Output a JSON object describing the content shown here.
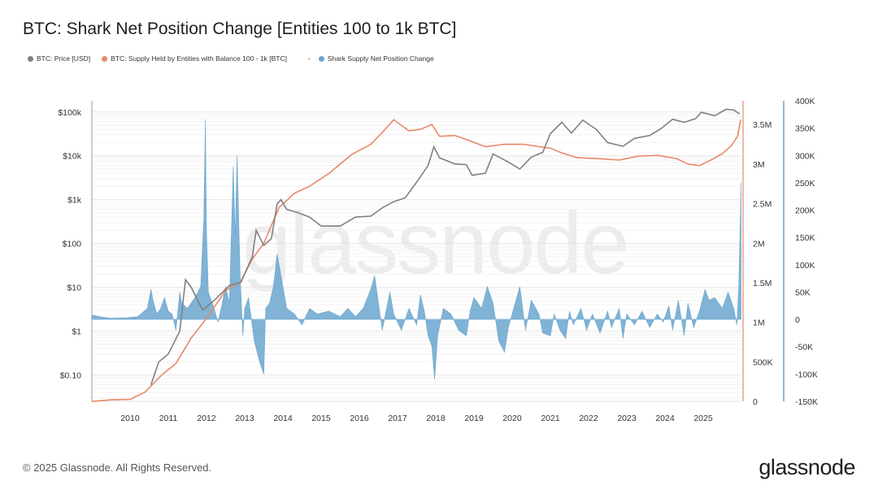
{
  "title": "BTC: Shark Net Position Change [Entities 100 to 1k BTC]",
  "legend": {
    "price": {
      "label": "BTC: Price [USD]",
      "color": "#808080"
    },
    "supply": {
      "label": "BTC: Supply Held by Entities with Balance 100 - 1k [BTC]",
      "color": "#e8896a"
    },
    "dash": "-",
    "netchange": {
      "label": "Shark Supply Net Position Change",
      "color": "#6aa6cf"
    }
  },
  "footer": "© 2025 Glassnode. All Rights Reserved.",
  "brand": "glassnode",
  "watermark": "glassnode",
  "chart_data": {
    "type": "line",
    "x_ticks": [
      "2010",
      "2011",
      "2012",
      "2013",
      "2014",
      "2015",
      "2016",
      "2017",
      "2018",
      "2019",
      "2020",
      "2021",
      "2022",
      "2023",
      "2024",
      "2025"
    ],
    "x_range": [
      2009.0,
      2026.0
    ],
    "axes": {
      "price": {
        "scale": "log",
        "ticks": [
          "$0.10",
          "$1",
          "$10",
          "$100",
          "$1k",
          "$10k",
          "$100k"
        ],
        "range": [
          0.025,
          180000
        ]
      },
      "supply": {
        "ticks": [
          "0",
          "500K",
          "1M",
          "1.5M",
          "2M",
          "2.5M",
          "3M",
          "3.5M"
        ],
        "range": [
          0,
          3800000
        ]
      },
      "netchange": {
        "ticks": [
          "-150K",
          "-100K",
          "-50K",
          "0",
          "50K",
          "100K",
          "150K",
          "200K",
          "250K",
          "300K",
          "350K",
          "400K"
        ],
        "range": [
          -150000,
          400000
        ]
      }
    },
    "series": [
      {
        "name": "BTC: Price [USD]",
        "axis": "price",
        "color": "#808080",
        "points": [
          [
            2010.55,
            0.06
          ],
          [
            2010.75,
            0.2
          ],
          [
            2011.0,
            0.3
          ],
          [
            2011.3,
            1.0
          ],
          [
            2011.45,
            15
          ],
          [
            2011.6,
            10
          ],
          [
            2011.9,
            3
          ],
          [
            2012.2,
            5
          ],
          [
            2012.6,
            11
          ],
          [
            2012.9,
            13
          ],
          [
            2013.2,
            50
          ],
          [
            2013.3,
            200
          ],
          [
            2013.5,
            90
          ],
          [
            2013.7,
            130
          ],
          [
            2013.85,
            800
          ],
          [
            2013.95,
            1000
          ],
          [
            2014.1,
            600
          ],
          [
            2014.4,
            500
          ],
          [
            2014.7,
            400
          ],
          [
            2015.0,
            250
          ],
          [
            2015.5,
            250
          ],
          [
            2015.9,
            400
          ],
          [
            2016.3,
            420
          ],
          [
            2016.6,
            650
          ],
          [
            2016.9,
            900
          ],
          [
            2017.2,
            1100
          ],
          [
            2017.5,
            2500
          ],
          [
            2017.8,
            6000
          ],
          [
            2017.95,
            16000
          ],
          [
            2018.1,
            9000
          ],
          [
            2018.5,
            6500
          ],
          [
            2018.8,
            6300
          ],
          [
            2018.95,
            3600
          ],
          [
            2019.3,
            4000
          ],
          [
            2019.5,
            11000
          ],
          [
            2019.9,
            7200
          ],
          [
            2020.2,
            5000
          ],
          [
            2020.5,
            9300
          ],
          [
            2020.8,
            12000
          ],
          [
            2021.0,
            32000
          ],
          [
            2021.3,
            58000
          ],
          [
            2021.55,
            33000
          ],
          [
            2021.85,
            65000
          ],
          [
            2022.2,
            40000
          ],
          [
            2022.5,
            20000
          ],
          [
            2022.9,
            16500
          ],
          [
            2023.2,
            25000
          ],
          [
            2023.6,
            29000
          ],
          [
            2023.9,
            42000
          ],
          [
            2024.2,
            68000
          ],
          [
            2024.5,
            58000
          ],
          [
            2024.8,
            70000
          ],
          [
            2024.95,
            98000
          ],
          [
            2025.3,
            82000
          ],
          [
            2025.6,
            115000
          ],
          [
            2025.8,
            110000
          ],
          [
            2025.95,
            90000
          ]
        ]
      },
      {
        "name": "BTC: Supply Held by Entities with Balance 100 - 1k [BTC]",
        "axis": "supply",
        "color": "#e8896a",
        "points": [
          [
            2009.0,
            0
          ],
          [
            2009.5,
            20000
          ],
          [
            2010.0,
            25000
          ],
          [
            2010.4,
            120000
          ],
          [
            2010.8,
            320000
          ],
          [
            2011.2,
            480000
          ],
          [
            2011.6,
            800000
          ],
          [
            2012.0,
            1050000
          ],
          [
            2012.5,
            1400000
          ],
          [
            2012.9,
            1520000
          ],
          [
            2013.2,
            1800000
          ],
          [
            2013.5,
            2000000
          ],
          [
            2013.9,
            2450000
          ],
          [
            2014.3,
            2630000
          ],
          [
            2014.7,
            2720000
          ],
          [
            2015.2,
            2880000
          ],
          [
            2015.8,
            3120000
          ],
          [
            2016.3,
            3250000
          ],
          [
            2016.6,
            3400000
          ],
          [
            2016.9,
            3560000
          ],
          [
            2017.3,
            3420000
          ],
          [
            2017.6,
            3440000
          ],
          [
            2017.9,
            3500000
          ],
          [
            2018.1,
            3350000
          ],
          [
            2018.5,
            3360000
          ],
          [
            2018.8,
            3310000
          ],
          [
            2019.3,
            3220000
          ],
          [
            2019.8,
            3250000
          ],
          [
            2020.3,
            3250000
          ],
          [
            2020.7,
            3220000
          ],
          [
            2021.0,
            3200000
          ],
          [
            2021.3,
            3140000
          ],
          [
            2021.7,
            3080000
          ],
          [
            2022.2,
            3070000
          ],
          [
            2022.8,
            3050000
          ],
          [
            2023.3,
            3100000
          ],
          [
            2023.8,
            3110000
          ],
          [
            2024.3,
            3070000
          ],
          [
            2024.6,
            3000000
          ],
          [
            2024.9,
            2980000
          ],
          [
            2025.2,
            3050000
          ],
          [
            2025.5,
            3130000
          ],
          [
            2025.75,
            3240000
          ],
          [
            2025.9,
            3350000
          ],
          [
            2025.98,
            3560000
          ]
        ]
      },
      {
        "name": "Shark Supply Net Position Change",
        "axis": "netchange",
        "type": "area",
        "color": "#6aa6cf",
        "points": [
          [
            2009.0,
            8000
          ],
          [
            2009.2,
            5000
          ],
          [
            2009.5,
            2000
          ],
          [
            2009.9,
            3000
          ],
          [
            2010.2,
            5000
          ],
          [
            2010.45,
            20000
          ],
          [
            2010.55,
            55000
          ],
          [
            2010.6,
            35000
          ],
          [
            2010.7,
            10000
          ],
          [
            2010.8,
            20000
          ],
          [
            2010.9,
            40000
          ],
          [
            2011.0,
            15000
          ],
          [
            2011.1,
            10000
          ],
          [
            2011.2,
            -20000
          ],
          [
            2011.3,
            50000
          ],
          [
            2011.35,
            30000
          ],
          [
            2011.5,
            20000
          ],
          [
            2011.7,
            40000
          ],
          [
            2011.85,
            60000
          ],
          [
            2011.93,
            185000
          ],
          [
            2011.97,
            365000
          ],
          [
            2012.0,
            160000
          ],
          [
            2012.05,
            50000
          ],
          [
            2012.2,
            20000
          ],
          [
            2012.3,
            -5000
          ],
          [
            2012.4,
            25000
          ],
          [
            2012.5,
            60000
          ],
          [
            2012.6,
            30000
          ],
          [
            2012.7,
            280000
          ],
          [
            2012.75,
            150000
          ],
          [
            2012.8,
            300000
          ],
          [
            2012.88,
            80000
          ],
          [
            2012.95,
            -30000
          ],
          [
            2013.0,
            20000
          ],
          [
            2013.1,
            40000
          ],
          [
            2013.25,
            -40000
          ],
          [
            2013.4,
            -80000
          ],
          [
            2013.5,
            -100000
          ],
          [
            2013.55,
            20000
          ],
          [
            2013.65,
            30000
          ],
          [
            2013.75,
            60000
          ],
          [
            2013.85,
            120000
          ],
          [
            2014.0,
            60000
          ],
          [
            2014.1,
            20000
          ],
          [
            2014.3,
            10000
          ],
          [
            2014.5,
            -10000
          ],
          [
            2014.7,
            20000
          ],
          [
            2014.9,
            10000
          ],
          [
            2015.2,
            15000
          ],
          [
            2015.5,
            5000
          ],
          [
            2015.7,
            20000
          ],
          [
            2015.9,
            5000
          ],
          [
            2016.1,
            20000
          ],
          [
            2016.3,
            55000
          ],
          [
            2016.4,
            80000
          ],
          [
            2016.5,
            30000
          ],
          [
            2016.6,
            -20000
          ],
          [
            2016.8,
            50000
          ],
          [
            2016.9,
            10000
          ],
          [
            2017.1,
            -20000
          ],
          [
            2017.3,
            20000
          ],
          [
            2017.5,
            -10000
          ],
          [
            2017.6,
            45000
          ],
          [
            2017.7,
            15000
          ],
          [
            2017.8,
            -30000
          ],
          [
            2017.9,
            -50000
          ],
          [
            2017.97,
            -110000
          ],
          [
            2018.05,
            -30000
          ],
          [
            2018.2,
            20000
          ],
          [
            2018.4,
            10000
          ],
          [
            2018.6,
            -20000
          ],
          [
            2018.8,
            -30000
          ],
          [
            2018.9,
            15000
          ],
          [
            2019.0,
            40000
          ],
          [
            2019.2,
            20000
          ],
          [
            2019.35,
            60000
          ],
          [
            2019.5,
            30000
          ],
          [
            2019.65,
            -40000
          ],
          [
            2019.8,
            -60000
          ],
          [
            2019.9,
            -15000
          ],
          [
            2020.0,
            10000
          ],
          [
            2020.2,
            60000
          ],
          [
            2020.35,
            -20000
          ],
          [
            2020.5,
            35000
          ],
          [
            2020.7,
            10000
          ],
          [
            2020.8,
            -25000
          ],
          [
            2021.0,
            -30000
          ],
          [
            2021.1,
            10000
          ],
          [
            2021.25,
            -20000
          ],
          [
            2021.4,
            -35000
          ],
          [
            2021.5,
            15000
          ],
          [
            2021.6,
            -10000
          ],
          [
            2021.8,
            20000
          ],
          [
            2021.95,
            -20000
          ],
          [
            2022.1,
            10000
          ],
          [
            2022.3,
            -25000
          ],
          [
            2022.5,
            15000
          ],
          [
            2022.6,
            -15000
          ],
          [
            2022.8,
            20000
          ],
          [
            2022.9,
            -35000
          ],
          [
            2023.0,
            10000
          ],
          [
            2023.2,
            -10000
          ],
          [
            2023.4,
            15000
          ],
          [
            2023.6,
            -15000
          ],
          [
            2023.8,
            10000
          ],
          [
            2023.95,
            -5000
          ],
          [
            2024.1,
            25000
          ],
          [
            2024.2,
            -20000
          ],
          [
            2024.35,
            35000
          ],
          [
            2024.5,
            -30000
          ],
          [
            2024.6,
            30000
          ],
          [
            2024.75,
            -15000
          ],
          [
            2024.9,
            15000
          ],
          [
            2025.05,
            55000
          ],
          [
            2025.15,
            35000
          ],
          [
            2025.3,
            40000
          ],
          [
            2025.5,
            20000
          ],
          [
            2025.65,
            50000
          ],
          [
            2025.8,
            20000
          ],
          [
            2025.88,
            -10000
          ],
          [
            2025.93,
            60000
          ],
          [
            2025.97,
            180000
          ],
          [
            2025.99,
            250000
          ]
        ]
      }
    ],
    "grid": true
  }
}
